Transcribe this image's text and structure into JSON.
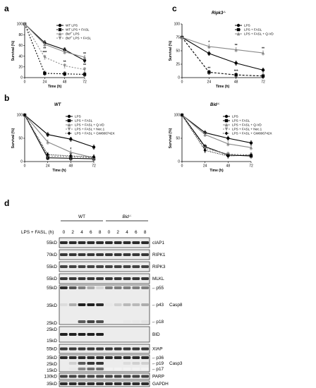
{
  "panels": {
    "a": {
      "letter": "a",
      "subtitle": "",
      "chart_data": {
        "type": "line",
        "x": [
          0,
          24,
          48,
          72
        ],
        "xlabel": "Time (h)",
        "ylabel": "Survival (%)",
        "xlim": [
          0,
          72
        ],
        "ylim": [
          0,
          100
        ],
        "xticks": [
          "0",
          "24",
          "48",
          "72"
        ],
        "yticks": [
          "0",
          "20",
          "40",
          "60",
          "80",
          "100"
        ],
        "series": [
          {
            "name": "WT LPS",
            "values": [
              100,
              65,
              52,
              32
            ],
            "color": "#000000",
            "dash": "",
            "marker": "circle"
          },
          {
            "name": "WT LPS + FASL",
            "values": [
              100,
              8,
              7,
              6
            ],
            "color": "#000000",
            "dash": "2,2",
            "marker": "square"
          },
          {
            "name": "Bid LPS",
            "values": [
              100,
              62,
              48,
              38
            ],
            "color": "#8a8a8a",
            "dash": "",
            "marker": "triangle"
          },
          {
            "name": "Bid LPS + FASL",
            "values": [
              100,
              38,
              22,
              15
            ],
            "color": "#8a8a8a",
            "dash": "2,2",
            "marker": "triangle-down"
          }
        ],
        "annotations": [
          {
            "x": 24,
            "y": 52,
            "text": "**"
          },
          {
            "x": 24,
            "y": 45,
            "text": "***"
          },
          {
            "x": 48,
            "y": 27,
            "text": "**"
          },
          {
            "x": 72,
            "y": 21,
            "text": "**"
          },
          {
            "x": 72,
            "y": 42,
            "text": "**"
          }
        ]
      }
    },
    "b": {
      "letter": "b",
      "subtitle": "WT",
      "chart_data": {
        "type": "line",
        "x": [
          0,
          24,
          48,
          72
        ],
        "xlabel": "Time (h)",
        "ylabel": "Survival (%)",
        "xlim": [
          0,
          72
        ],
        "ylim": [
          0,
          100
        ],
        "xticks": [
          "0",
          "24",
          "48",
          "72"
        ],
        "yticks": [
          "0",
          "50",
          "100"
        ],
        "series": [
          {
            "name": "LPS",
            "values": [
              100,
              58,
              48,
              31
            ],
            "color": "#000000",
            "dash": "",
            "marker": "circle"
          },
          {
            "name": "LPS + FASL",
            "values": [
              100,
              8,
              7,
              6
            ],
            "color": "#000000",
            "dash": "",
            "marker": "square"
          },
          {
            "name": "LPS + FASL + Q-VD",
            "values": [
              100,
              42,
              20,
              8
            ],
            "color": "#8a8a8a",
            "dash": "",
            "marker": "triangle"
          },
          {
            "name": "LPS + FASL + Nec.1",
            "values": [
              100,
              12,
              10,
              8
            ],
            "color": "#8a8a8a",
            "dash": "2,2",
            "marker": "triangle-down"
          },
          {
            "name": "LPS + FASL + GW806742X",
            "values": [
              100,
              15,
              12,
              10
            ],
            "color": "#000000",
            "dash": "1,1.5",
            "marker": "diamond"
          }
        ],
        "annotations": [
          {
            "x": 48,
            "y": 24,
            "text": "*"
          }
        ]
      }
    },
    "c": {
      "letter": "c",
      "subtitle": "Ripk3",
      "chart_data": {
        "type": "line",
        "x": [
          0,
          24,
          48,
          72
        ],
        "xlabel": "Time (h)",
        "ylabel": "Survival (%)",
        "xlim": [
          0,
          72
        ],
        "ylim": [
          0,
          100
        ],
        "xticks": [
          "0",
          "24",
          "48",
          "72"
        ],
        "yticks": [
          "0",
          "25",
          "50",
          "75",
          "100"
        ],
        "series": [
          {
            "name": "LPS",
            "values": [
              75,
              45,
              27,
              14
            ],
            "color": "#000000",
            "dash": "",
            "marker": "circle"
          },
          {
            "name": "LPS + FASL",
            "values": [
              75,
              10,
              5,
              3
            ],
            "color": "#000000",
            "dash": "3,2",
            "marker": "square"
          },
          {
            "name": "LPS + FASL + Q-VD",
            "values": [
              75,
              58,
              52,
              46
            ],
            "color": "#8a8a8a",
            "dash": "",
            "marker": "triangle"
          }
        ],
        "annotations": [
          {
            "x": 24,
            "y": 64,
            "text": "*"
          },
          {
            "x": 24,
            "y": 15,
            "text": "**"
          },
          {
            "x": 48,
            "y": 58,
            "text": "**"
          },
          {
            "x": 48,
            "y": 10,
            "text": "***"
          },
          {
            "x": 72,
            "y": 52,
            "text": "**"
          }
        ]
      }
    },
    "d2": {
      "letter": "",
      "subtitle": "Bid",
      "chart_data": {
        "type": "line",
        "x": [
          0,
          24,
          48,
          72
        ],
        "xlabel": "Time (h)",
        "ylabel": "Survival (%)",
        "xlim": [
          0,
          72
        ],
        "ylim": [
          0,
          100
        ],
        "xticks": [
          "0",
          "24",
          "48",
          "72"
        ],
        "yticks": [
          "0",
          "50",
          "100"
        ],
        "series": [
          {
            "name": "LPS",
            "values": [
              100,
              62,
              50,
              40
            ],
            "color": "#000000",
            "dash": "",
            "marker": "circle"
          },
          {
            "name": "LPS + FASL",
            "values": [
              100,
              32,
              14,
              12
            ],
            "color": "#000000",
            "dash": "",
            "marker": "square"
          },
          {
            "name": "LPS + FASL + Q-VD",
            "values": [
              100,
              58,
              38,
              30
            ],
            "color": "#8a8a8a",
            "dash": "",
            "marker": "triangle"
          },
          {
            "name": "LPS + FASL + Nec.1",
            "values": [
              100,
              28,
              16,
              14
            ],
            "color": "#8a8a8a",
            "dash": "2,2",
            "marker": "triangle-down"
          },
          {
            "name": "LPS + FASL + GW806742X",
            "values": [
              100,
              24,
              12,
              14
            ],
            "color": "#000000",
            "dash": "1,1.5",
            "marker": "diamond"
          }
        ],
        "annotations": []
      }
    }
  },
  "western": {
    "letter": "d",
    "treatment_label": "LPS + FASL, (h)",
    "groups": [
      {
        "name": "WT",
        "timepoints": [
          "0",
          "2",
          "4",
          "6",
          "8"
        ]
      },
      {
        "name": "Bid",
        "timepoints": [
          "0",
          "2",
          "4",
          "6",
          "8"
        ]
      }
    ],
    "blots": [
      {
        "protein": "cIAP1",
        "mw": "55kD"
      },
      {
        "protein": "RIPK1",
        "mw": "70kD"
      },
      {
        "protein": "RIPK3",
        "mw": "55kD"
      },
      {
        "protein": "MLKL",
        "mw": "55kD"
      },
      {
        "protein": "Casp8",
        "mw": "55kD",
        "mw2": "35kD",
        "mw3": "25kD",
        "bands": [
          "p55",
          "p43",
          "p18"
        ]
      },
      {
        "protein": "BID",
        "mw": "25kD",
        "mw2": "15kD"
      },
      {
        "protein": "XIAP",
        "mw": "55kD"
      },
      {
        "protein": "Casp3",
        "mw": "35kD",
        "mw2": "25kD",
        "mw3": "15kD",
        "bands": [
          "p36",
          "p19",
          "p17"
        ]
      },
      {
        "protein": "PARP",
        "mw": "130kD"
      },
      {
        "protein": "GAPDH",
        "mw": "35kD"
      }
    ]
  }
}
